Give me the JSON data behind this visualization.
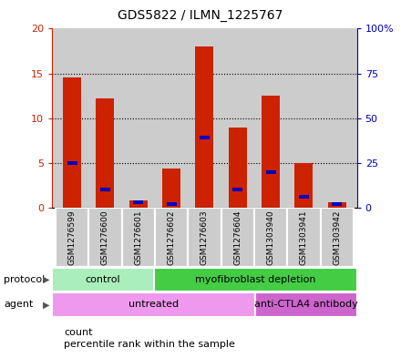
{
  "title": "GDS5822 / ILMN_1225767",
  "samples": [
    "GSM1276599",
    "GSM1276600",
    "GSM1276601",
    "GSM1276602",
    "GSM1276603",
    "GSM1276604",
    "GSM1303940",
    "GSM1303941",
    "GSM1303942"
  ],
  "counts": [
    14.5,
    12.2,
    0.8,
    4.4,
    18.0,
    8.9,
    12.5,
    5.0,
    0.6
  ],
  "percentiles": [
    25,
    10,
    3,
    2,
    39,
    10,
    20,
    6,
    2
  ],
  "ylim_left": [
    0,
    20
  ],
  "ylim_right": [
    0,
    100
  ],
  "yticks_left": [
    0,
    5,
    10,
    15,
    20
  ],
  "yticks_right": [
    0,
    25,
    50,
    75,
    100
  ],
  "ytick_labels_left": [
    "0",
    "5",
    "10",
    "15",
    "20"
  ],
  "ytick_labels_right": [
    "0",
    "25",
    "50",
    "75",
    "100%"
  ],
  "bar_color": "#cc2200",
  "percentile_color": "#0000bb",
  "bg_color": "#cccccc",
  "protocol_groups": [
    {
      "label": "control",
      "start": 0,
      "end": 3,
      "color": "#aaeebb"
    },
    {
      "label": "myofibroblast depletion",
      "start": 3,
      "end": 9,
      "color": "#44cc44"
    }
  ],
  "agent_groups": [
    {
      "label": "untreated",
      "start": 0,
      "end": 6,
      "color": "#ee99ee"
    },
    {
      "label": "anti-CTLA4 antibody",
      "start": 6,
      "end": 9,
      "color": "#cc66cc"
    }
  ],
  "legend_count_label": "count",
  "legend_pct_label": "percentile rank within the sample",
  "left_axis_color": "#cc2200",
  "right_axis_color": "#0000bb"
}
